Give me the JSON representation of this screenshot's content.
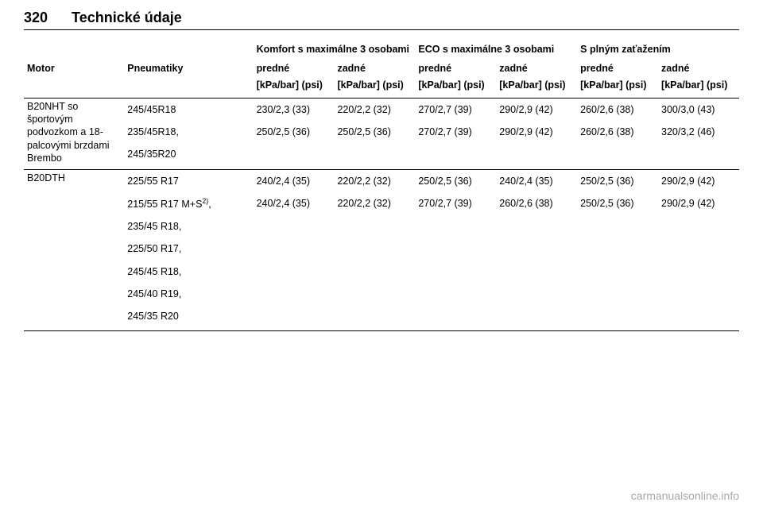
{
  "header": {
    "page_number": "320",
    "title": "Technické údaje"
  },
  "table": {
    "group_headers": {
      "comfort": "Komfort s maximálne 3 osobami",
      "eco": "ECO s maximálne 3 osobami",
      "full": "S plným zaťažením"
    },
    "row_labels": {
      "motor": "Motor",
      "tires": "Pneumatiky"
    },
    "sub_headers": {
      "front": "predné",
      "rear": "zadné"
    },
    "units": "[kPa/bar] (psi)",
    "sections": [
      {
        "motor": "B20NHT so športovým podvozkom a 18-palcovými brzdami Brembo",
        "rows": [
          {
            "tire": "245/45R18",
            "vals": [
              "230/2,3 (33)",
              "220/2,2 (32)",
              "270/2,7 (39)",
              "290/2,9 (42)",
              "260/2,6 (38)",
              "300/3,0 (43)"
            ]
          },
          {
            "tire": "235/45R18,",
            "vals": [
              "250/2,5 (36)",
              "250/2,5 (36)",
              "270/2,7 (39)",
              "290/2,9 (42)",
              "260/2,6 (38)",
              "320/3,2 (46)"
            ]
          },
          {
            "tire": "245/35R20",
            "vals": [
              "",
              "",
              "",
              "",
              "",
              ""
            ]
          }
        ]
      },
      {
        "motor": "B20DTH",
        "rows": [
          {
            "tire": "225/55 R17",
            "vals": [
              "240/2,4 (35)",
              "220/2,2 (32)",
              "250/2,5 (36)",
              "240/2,4 (35)",
              "250/2,5 (36)",
              "290/2,9 (42)"
            ]
          },
          {
            "tire": "215/55 R17 M+S",
            "tire_sup": "2)",
            "tire_suffix": ",",
            "vals": [
              "240/2,4 (35)",
              "220/2,2 (32)",
              "270/2,7 (39)",
              "260/2,6 (38)",
              "250/2,5 (36)",
              "290/2,9 (42)"
            ]
          },
          {
            "tire": "235/45 R18,",
            "vals": [
              "",
              "",
              "",
              "",
              "",
              ""
            ]
          },
          {
            "tire": "225/50 R17,",
            "vals": [
              "",
              "",
              "",
              "",
              "",
              ""
            ]
          },
          {
            "tire": "245/45 R18,",
            "vals": [
              "",
              "",
              "",
              "",
              "",
              ""
            ]
          },
          {
            "tire": "245/40 R19,",
            "vals": [
              "",
              "",
              "",
              "",
              "",
              ""
            ]
          },
          {
            "tire": "245/35 R20",
            "vals": [
              "",
              "",
              "",
              "",
              "",
              ""
            ]
          }
        ]
      }
    ]
  },
  "footer": "carmanualsonline.info"
}
